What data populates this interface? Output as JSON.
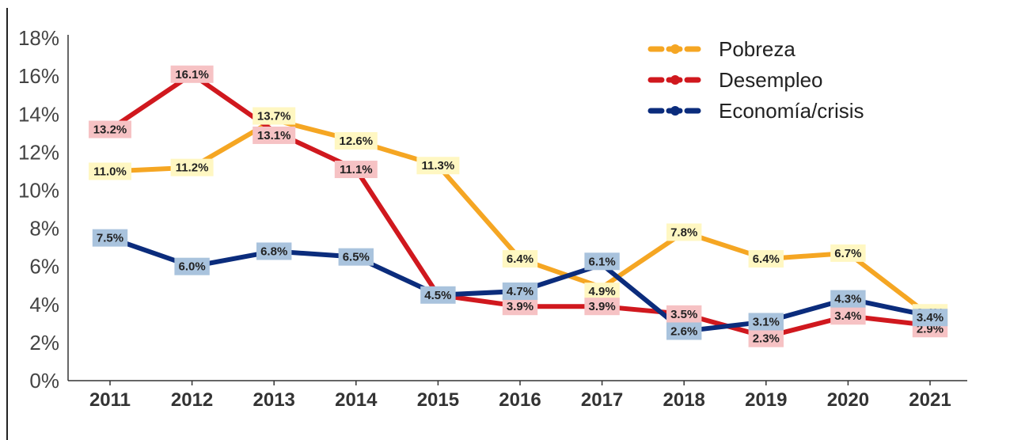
{
  "chart_data": {
    "type": "line",
    "title": "",
    "xlabel": "",
    "ylabel": "",
    "categories": [
      "2011",
      "2012",
      "2013",
      "2014",
      "2015",
      "2016",
      "2017",
      "2018",
      "2019",
      "2020",
      "2021"
    ],
    "ylim": [
      0,
      18
    ],
    "yticks": [
      "0%",
      "2%",
      "4%",
      "6%",
      "8%",
      "10%",
      "12%",
      "14%",
      "16%",
      "18%"
    ],
    "legend_position": "top-right",
    "grid": false,
    "series": [
      {
        "name": "Pobreza",
        "color": "#F5A623",
        "label_bg": "#FFF7C2",
        "values": [
          11.0,
          11.2,
          13.7,
          12.6,
          11.3,
          6.4,
          4.9,
          7.8,
          6.4,
          6.7,
          3.4
        ],
        "labels": [
          "11.0%",
          "11.2%",
          "13.7%",
          "12.6%",
          "11.3%",
          "6.4%",
          "4.9%",
          "7.8%",
          "6.4%",
          "6.7%",
          "3.4%"
        ]
      },
      {
        "name": "Desempleo",
        "color": "#D0181E",
        "label_bg": "#F6C2C4",
        "values": [
          13.2,
          16.1,
          13.1,
          11.1,
          4.5,
          3.9,
          3.9,
          3.5,
          2.3,
          3.4,
          2.9
        ],
        "labels": [
          "13.2%",
          "16.1%",
          "13.1%",
          "11.1%",
          "",
          "3.9%",
          "3.9%",
          "3.5%",
          "2.3%",
          "3.4%",
          "2.9%"
        ]
      },
      {
        "name": "Economía/crisis",
        "color": "#0B2C7C",
        "label_bg": "#A9C3DD",
        "values": [
          7.5,
          6.0,
          6.8,
          6.5,
          4.5,
          4.7,
          6.1,
          2.6,
          3.1,
          4.3,
          3.4
        ],
        "labels": [
          "7.5%",
          "6.0%",
          "6.8%",
          "6.5%",
          "4.5%",
          "4.7%",
          "6.1%",
          "2.6%",
          "3.1%",
          "4.3%",
          "3.4%"
        ]
      }
    ]
  }
}
